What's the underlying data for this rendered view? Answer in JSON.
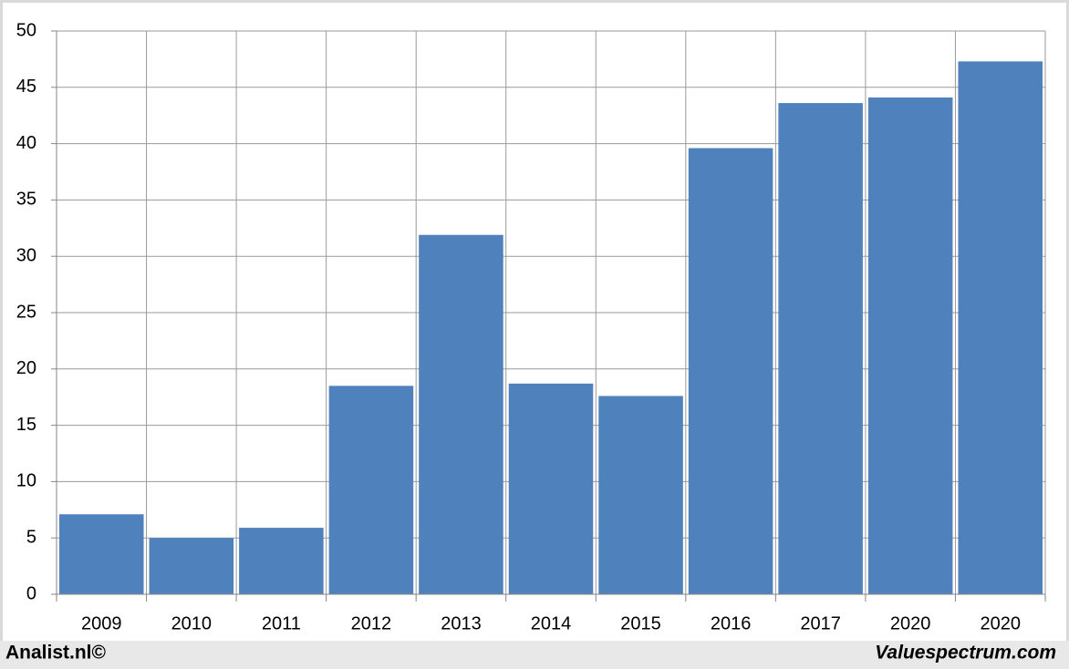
{
  "chart_data": {
    "type": "bar",
    "categories": [
      "2009",
      "2010",
      "2011",
      "2012",
      "2013",
      "2014",
      "2015",
      "2016",
      "2017",
      "2020",
      "2020"
    ],
    "values": [
      7.1,
      5.0,
      5.9,
      18.5,
      31.9,
      18.7,
      17.6,
      39.6,
      43.6,
      44.1,
      47.3
    ],
    "color": "#4f81bd",
    "ylim": [
      0,
      50
    ],
    "yticks": [
      0,
      5,
      10,
      15,
      20,
      25,
      30,
      35,
      40,
      45,
      50
    ],
    "grid": true,
    "annotations": [
      "Analist.nl©",
      "Valuespectrum.com"
    ]
  }
}
